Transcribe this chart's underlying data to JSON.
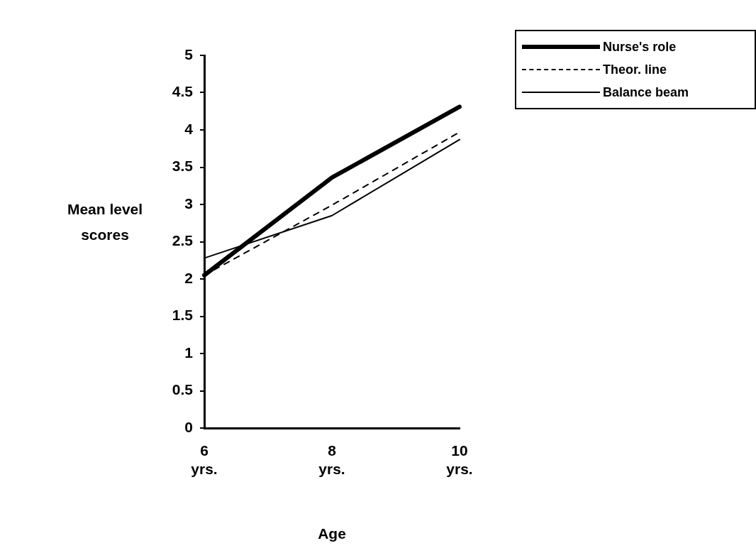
{
  "chart_data": {
    "type": "line",
    "xlabel": "Age",
    "ylabel": "Mean level scores",
    "categories": [
      "6 yrs.",
      "8 yrs.",
      "10 yrs."
    ],
    "ylim": [
      0,
      5
    ],
    "yticks": [
      0,
      0.5,
      1,
      1.5,
      2,
      2.5,
      3,
      3.5,
      4,
      4.5,
      5
    ],
    "grid": false,
    "legend": "top right",
    "marker": "none",
    "series": [
      {
        "name": "Nurse's role",
        "color": "#000000",
        "values": [
          2.05,
          3.36,
          4.31
        ],
        "line_style": "solid"
      },
      {
        "name": "Theor. line",
        "color": "#000000",
        "values": [
          2.05,
          2.99,
          3.97
        ],
        "line_style": "dashed"
      },
      {
        "name": "Balance beam",
        "color": "#000000",
        "values": [
          2.28,
          2.85,
          3.87
        ],
        "line_style": "solid"
      }
    ]
  }
}
